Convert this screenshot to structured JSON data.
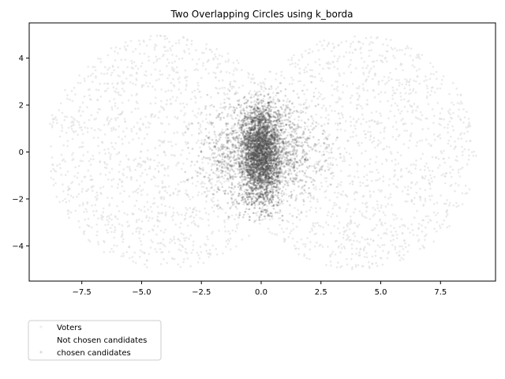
{
  "chart_data": {
    "type": "scatter",
    "title": "Two Overlapping Circles using k_borda",
    "xlabel": "",
    "ylabel": "",
    "xlim": [
      -9.7,
      9.8
    ],
    "ylim": [
      -5.5,
      5.5
    ],
    "x_ticks": [
      -7.5,
      -5.0,
      -2.5,
      0.0,
      2.5,
      5.0,
      7.5
    ],
    "x_tick_labels": [
      "−7.5",
      "−5.0",
      "−2.5",
      "0.0",
      "2.5",
      "5.0",
      "7.5"
    ],
    "y_ticks": [
      4,
      2,
      0,
      -2,
      -4
    ],
    "y_tick_labels": [
      "4",
      "2",
      "0",
      "−2",
      "−4"
    ],
    "grid": false,
    "series": [
      {
        "name": "Voters",
        "description": "uniform voters in two overlapping disks",
        "circles": [
          {
            "center": [
              -4,
              0
            ],
            "radius": 5
          },
          {
            "center": [
              4,
              0
            ],
            "radius": 5
          }
        ],
        "color": "#d9d9d9"
      },
      {
        "name": "Not chosen candidates",
        "color": "#ffffff"
      },
      {
        "name": "chosen candidates",
        "description": "dense elliptical cluster of chosen candidates centred at the overlap",
        "core": {
          "center": [
            0,
            0
          ],
          "x_extent": [
            -0.9,
            0.9
          ],
          "y_extent": [
            -2.8,
            2.4
          ]
        },
        "wide": {
          "x_extent": [
            -3.5,
            3.5
          ],
          "y_extent": [
            -3,
            3
          ]
        },
        "color": "#4d4d4d"
      }
    ],
    "legend": {
      "placement": "lower-left, outside axes",
      "entries": [
        "Voters",
        "Not chosen candidates",
        "chosen candidates"
      ]
    }
  }
}
